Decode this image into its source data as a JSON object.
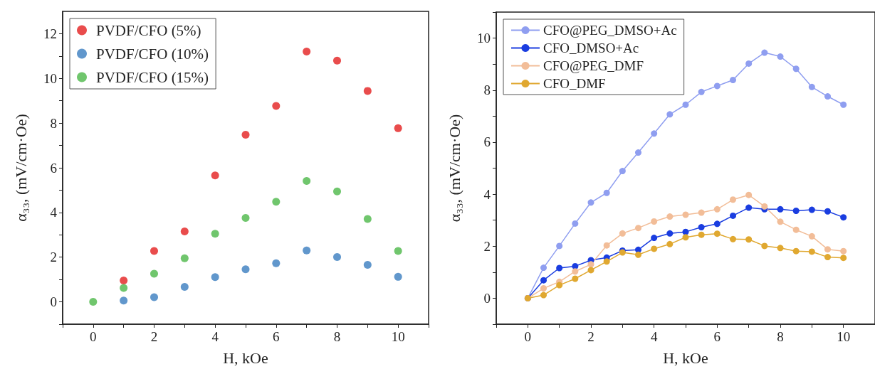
{
  "chart_data": [
    {
      "type": "scatter",
      "xlabel": "H, kOe",
      "ylabel": "α₃₃, (mV/cm·Oe)",
      "xlim": [
        -1,
        11
      ],
      "ylim": [
        -1,
        13
      ],
      "xticks": [
        {
          "value": -1,
          "label": null
        },
        0,
        {
          "value": 1,
          "label": null
        },
        2,
        {
          "value": 3,
          "label": null
        },
        4,
        {
          "value": 5,
          "label": null
        },
        6,
        {
          "value": 7,
          "label": null
        },
        8,
        {
          "value": 9,
          "label": null
        },
        10,
        {
          "value": 11,
          "label": null
        }
      ],
      "yticks": [
        {
          "value": -1,
          "label": null
        },
        0,
        {
          "value": 1,
          "label": null
        },
        2,
        {
          "value": 3,
          "label": null
        },
        4,
        {
          "value": 5,
          "label": null
        },
        6,
        {
          "value": 7,
          "label": null
        },
        8,
        {
          "value": 9,
          "label": null
        },
        10,
        {
          "value": 11,
          "label": null
        },
        12
      ],
      "marker": "circle",
      "legend": "top left",
      "grid": false,
      "series": [
        {
          "name": "PVDF/CFO (5%)",
          "color": "#e41f1f",
          "x": [
            1,
            2,
            3,
            4,
            5,
            6,
            7,
            8,
            9,
            10
          ],
          "values": [
            0.96,
            2.28,
            3.15,
            5.66,
            7.48,
            8.77,
            11.2,
            10.8,
            9.44,
            7.77
          ]
        },
        {
          "name": "PVDF/CFO (10%)",
          "color": "#3a7dbf",
          "x": [
            1,
            2,
            3,
            4,
            5,
            6,
            7,
            8,
            9,
            10
          ],
          "values": [
            0.06,
            0.21,
            0.67,
            1.11,
            1.46,
            1.73,
            2.3,
            2.01,
            1.66,
            1.12
          ]
        },
        {
          "name": "PVDF/CFO (15%)",
          "color": "#4cb848",
          "x": [
            0,
            1,
            2,
            3,
            4,
            5,
            6,
            7,
            8,
            9,
            10
          ],
          "values": [
            0,
            0.62,
            1.26,
            1.95,
            3.05,
            3.76,
            4.48,
            5.41,
            4.94,
            3.71,
            2.28
          ]
        }
      ]
    },
    {
      "type": "line",
      "xlabel": "H, kOe",
      "ylabel": "α₃₃, (mV/cm·Oe)",
      "xlim": [
        -1,
        11
      ],
      "ylim": [
        -1,
        11
      ],
      "xticks": [
        {
          "value": -1,
          "label": null
        },
        0,
        {
          "value": 1,
          "label": null
        },
        2,
        {
          "value": 3,
          "label": null
        },
        4,
        {
          "value": 5,
          "label": null
        },
        6,
        {
          "value": 7,
          "label": null
        },
        8,
        {
          "value": 9,
          "label": null
        },
        10,
        {
          "value": 11,
          "label": null
        }
      ],
      "yticks": [
        {
          "value": -1,
          "label": null
        },
        0,
        {
          "value": 1,
          "label": null
        },
        2,
        {
          "value": 3,
          "label": null
        },
        4,
        {
          "value": 5,
          "label": null
        },
        6,
        {
          "value": 7,
          "label": null
        },
        8,
        {
          "value": 9,
          "label": null
        },
        10,
        {
          "value": 11,
          "label": null
        }
      ],
      "x": [
        0,
        0.5,
        1,
        1.5,
        2,
        2.5,
        3,
        3.5,
        4,
        4.5,
        5,
        5.5,
        6,
        6.5,
        7,
        7.5,
        8,
        8.5,
        9,
        9.5,
        10
      ],
      "marker": "circle",
      "line_style": "solid",
      "legend": "top left",
      "grid": false,
      "series": [
        {
          "name": "CFO@PEG_DMSO+Ac",
          "color": "#8f9ef0",
          "values": [
            0,
            1.17,
            2.01,
            2.87,
            3.68,
            4.05,
            4.89,
            5.6,
            6.33,
            7.07,
            7.44,
            7.93,
            8.16,
            8.39,
            9.02,
            9.44,
            9.29,
            8.82,
            8.12,
            7.76,
            7.44
          ]
        },
        {
          "name": "CFO_DMSO+Ac",
          "color": "#1a3de0",
          "values": [
            0,
            0.69,
            1.16,
            1.23,
            1.46,
            1.56,
            1.83,
            1.86,
            2.32,
            2.49,
            2.55,
            2.73,
            2.86,
            3.17,
            3.48,
            3.42,
            3.42,
            3.36,
            3.4,
            3.34,
            3.11
          ]
        },
        {
          "name": "CFO@PEG_DMF",
          "color": "#f2bd98",
          "values": [
            0,
            0.38,
            0.63,
            1.03,
            1.3,
            2.03,
            2.49,
            2.7,
            2.95,
            3.14,
            3.21,
            3.29,
            3.42,
            3.79,
            3.97,
            3.53,
            2.94,
            2.63,
            2.38,
            1.88,
            1.81
          ]
        },
        {
          "name": "CFO_DMF",
          "color": "#e0a830",
          "values": [
            0,
            0.12,
            0.5,
            0.75,
            1.08,
            1.41,
            1.76,
            1.67,
            1.9,
            2.08,
            2.34,
            2.44,
            2.48,
            2.27,
            2.26,
            2.01,
            1.93,
            1.81,
            1.79,
            1.58,
            1.55
          ]
        }
      ]
    }
  ]
}
